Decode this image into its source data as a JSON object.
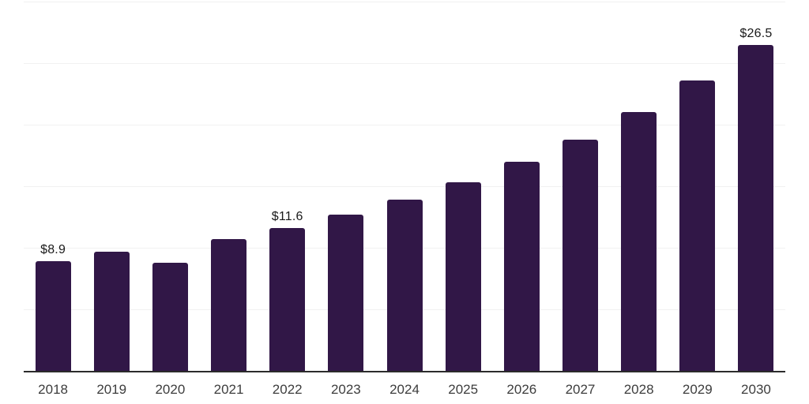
{
  "chart_data": {
    "type": "bar",
    "title": "",
    "xlabel": "",
    "ylabel": "",
    "categories": [
      "2018",
      "2019",
      "2020",
      "2021",
      "2022",
      "2023",
      "2024",
      "2025",
      "2026",
      "2027",
      "2028",
      "2029",
      "2030"
    ],
    "values": [
      8.9,
      9.7,
      8.8,
      10.7,
      11.6,
      12.7,
      13.9,
      15.3,
      17.0,
      18.8,
      21.0,
      23.6,
      26.5
    ],
    "value_labels": [
      "$8.9",
      "",
      "",
      "",
      "$11.6",
      "",
      "",
      "",
      "",
      "",
      "",
      "",
      "$26.5"
    ],
    "ylim": [
      0,
      30
    ],
    "gridline_values": [
      5,
      10,
      15,
      20,
      25,
      30
    ],
    "grid": true,
    "legend_position": "none",
    "y_tick_labels_visible": false,
    "colors": {
      "bar": "#311747",
      "axis": "#2b2b2b",
      "gridline": "#f1f1f1",
      "x_label": "#3d3d3d",
      "value_label": "#1a1a1a",
      "background": "#ffffff"
    }
  }
}
